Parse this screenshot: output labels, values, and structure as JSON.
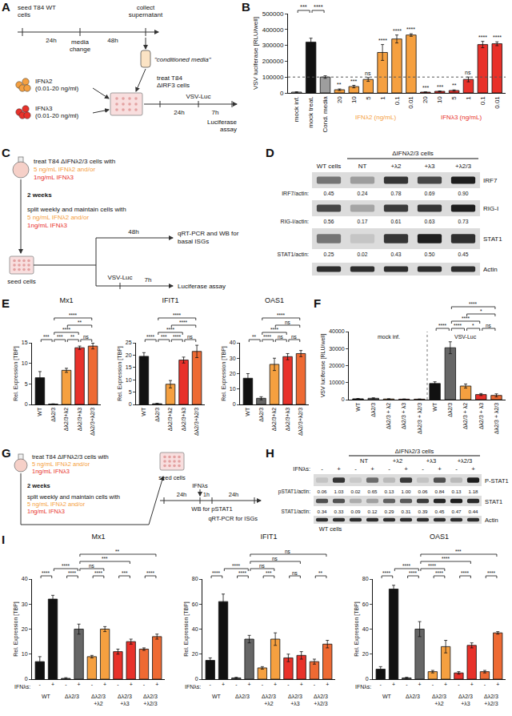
{
  "panel_labels": [
    "A",
    "B",
    "C",
    "D",
    "E",
    "F",
    "G",
    "H",
    "I"
  ],
  "diagrams": {
    "A": {
      "seed": "seed T84 WT cells",
      "collect": "collect supernatant",
      "first_interval": "24h",
      "second_interval": "48h",
      "media_change": "media change",
      "conditioned": "\"conditioned media\"",
      "ifn2": "IFNλ2 (0.01-20 ng/ml)",
      "ifn3": "IFNλ3 (0.01-20 ng/ml)",
      "treat": "treat T84 ΔIRF3 cells",
      "treat_interval": "24h",
      "infection": "VSV-Luc",
      "infection_interval": "7h",
      "readout": "Luciferase assay"
    },
    "C": {
      "treat_lines": [
        "treat T84 ΔIFNλ2/3 cells with",
        "5 ng/mL IFNλ2 and/or",
        "1ng/mL IFNλ3"
      ],
      "duration": "2 weeks",
      "split_lines": [
        "split weekly and maintain cells with",
        "5 ng/mL IFNλ2 and/or",
        "1ng/mL IFNλ3"
      ],
      "seed": "seed cells",
      "upper_interval": "48h",
      "upper_readout": "qRT-PCR and WB for basal ISGs",
      "infection": "VSV-Luc",
      "lower_interval": "7h",
      "lower_readout": "Luciferase assay"
    },
    "G": {
      "treat_lines": [
        "treat T84 ΔIFNλ2/3 cells with",
        "5 ng/mL IFNλ2 and/or",
        "1ng/mL IFNλ3"
      ],
      "duration": "2 weeks",
      "split_lines": [
        "split weekly and maintain cells with",
        "5 ng/mL IFNλ2 and/or",
        "1ng/mL IFNλ3"
      ],
      "seed": "seed cells",
      "first_interval": "24h",
      "stimulus": "IFNλs",
      "second_interval": "1h",
      "third_interval": "24h",
      "wb": "WB for pSTAT1",
      "qpcr": "qRT-PCR for ISGs"
    }
  },
  "blots": {
    "D": {
      "header": "ΔIFNλ2/3 cells",
      "lanes": [
        "WT cells",
        "NT",
        "+λ2",
        "+λ3",
        "+λ2/3"
      ],
      "rows": [
        {
          "protein": "IRF7",
          "ratio_label": "IRF7/actin:",
          "ratios": [
            "0.45",
            "0.24",
            "0.78",
            "0.69",
            "0.90"
          ]
        },
        {
          "protein": "RIG-I",
          "ratio_label": "RIG-I/actin:",
          "ratios": [
            "0.56",
            "0.17",
            "0.61",
            "0.63",
            "0.73"
          ]
        },
        {
          "protein": "STAT1",
          "ratio_label": "STAT1/actin:",
          "ratios": [
            "0.25",
            "0.02",
            "0.43",
            "0.50",
            "0.45"
          ]
        },
        {
          "protein": "Actin"
        }
      ]
    },
    "H": {
      "header": "ΔIFNλ2/3 cells",
      "wt_label": "WT cells",
      "treatment_label": "IFNλs:",
      "treatments": [
        "-",
        "+",
        "-",
        "+",
        "-",
        "+",
        "-",
        "+",
        "-",
        "+"
      ],
      "groups": [
        "NT",
        "+λ2",
        "+λ3",
        "+λ2/3"
      ],
      "rows": [
        {
          "protein": "P-STAT1",
          "ratio_label": "pSTAT1/actin:",
          "ratios": [
            "0.06",
            "1.03",
            "0.02",
            "0.65",
            "0.13",
            "1.00",
            "0.06",
            "0.84",
            "0.13",
            "1.18"
          ]
        },
        {
          "protein": "STAT1",
          "ratio_label": "STAT1/actin:",
          "ratios": [
            "0.34",
            "0.33",
            "0.09",
            "0.12",
            "0.29",
            "0.31",
            "0.39",
            "0.45",
            "0.47",
            "0.44"
          ]
        },
        {
          "protein": "Actin"
        }
      ]
    }
  },
  "chart_data": [
    {
      "panel": "B",
      "type": "bar",
      "y_label": "VSV luciferase [RLU/well]",
      "categories": [
        "mock inf.",
        "mock treat.",
        "Cond. media",
        "20",
        "10",
        "5",
        "1",
        "0.1",
        "0.01",
        "20",
        "10",
        "5",
        "1",
        "0.1",
        "0.01"
      ],
      "values": [
        5000,
        320000,
        100000,
        20000,
        40000,
        85000,
        255000,
        340000,
        365000,
        5000,
        10000,
        15000,
        85000,
        305000,
        310000
      ],
      "errors": [
        2000,
        25000,
        8000,
        5000,
        8000,
        12000,
        50000,
        25000,
        8000,
        1500,
        2000,
        4000,
        15000,
        20000,
        12000
      ],
      "colors": [
        "#ffffff",
        "#111111",
        "#9e9e9e",
        "#F5A040",
        "#F5A040",
        "#F5A040",
        "#F5A040",
        "#F5A040",
        "#F5A040",
        "#E8312A",
        "#E8312A",
        "#E8312A",
        "#E8312A",
        "#E8312A",
        "#E8312A"
      ],
      "ylim": [
        0,
        500000
      ],
      "yticks": [
        0,
        100000,
        200000,
        300000,
        400000,
        500000
      ],
      "grid": false,
      "reference_line": 100000,
      "significance": [
        null,
        null,
        null,
        "**",
        "***",
        "ns",
        "****",
        "****",
        "****",
        "***",
        "***",
        "**",
        "ns",
        "****",
        "****"
      ],
      "brackets": [
        {
          "from": 0,
          "to": 1,
          "label": "***"
        },
        {
          "from": 1,
          "to": 2,
          "label": "****"
        }
      ],
      "groups": [
        {
          "label": "IFNλ2 (ng/mL)",
          "from": 3,
          "to": 8,
          "color": "#F5A040"
        },
        {
          "label": "IFNλ3 (ng/mL)",
          "from": 9,
          "to": 14,
          "color": "#E8312A"
        }
      ]
    },
    {
      "panel": "E",
      "type": "bar",
      "title": "Mx1",
      "y_label": "Rel. Expression [TBP]",
      "categories": [
        "WT",
        "Δλ2/3",
        "Δλ2/3+λ2",
        "Δλ2/3+λ3",
        "Δλ2/3+λ2/3"
      ],
      "values": [
        6.5,
        0.1,
        8.3,
        13.8,
        14.2
      ],
      "errors": [
        1.5,
        0.05,
        0.5,
        0.4,
        0.7
      ],
      "colors": [
        "#111111",
        "#666666",
        "#F5A040",
        "#E8312A",
        "#EE6A33"
      ],
      "ylim": [
        0,
        15
      ],
      "yticks": [
        0,
        5,
        10,
        15
      ],
      "grid": false,
      "brackets": [
        {
          "from": 0,
          "to": 1,
          "label": "***"
        },
        {
          "from": 1,
          "to": 2,
          "label": "***"
        },
        {
          "from": 1,
          "to": 3,
          "label": "****"
        },
        {
          "from": 1,
          "to": 4,
          "label": "****"
        },
        {
          "from": 2,
          "to": 3,
          "label": "**"
        },
        {
          "from": 2,
          "to": 4,
          "label": "**"
        },
        {
          "from": 3,
          "to": 4,
          "label": "ns"
        }
      ]
    },
    {
      "panel": "E",
      "type": "bar",
      "title": "IFIT1",
      "y_label": "Rel. Expression [TBP]",
      "categories": [
        "WT",
        "Δλ2/3",
        "Δλ2/3+λ2",
        "Δλ2/3+λ3",
        "Δλ2/3+λ2/3"
      ],
      "values": [
        19.5,
        0.3,
        8.2,
        18,
        21.5
      ],
      "errors": [
        1.5,
        0.2,
        1.5,
        1.2,
        2.5
      ],
      "colors": [
        "#111111",
        "#666666",
        "#F5A040",
        "#E8312A",
        "#EE6A33"
      ],
      "ylim": [
        0,
        25
      ],
      "yticks": [
        0,
        5,
        10,
        15,
        20,
        25
      ],
      "grid": false,
      "brackets": [
        {
          "from": 0,
          "to": 1,
          "label": "****"
        },
        {
          "from": 1,
          "to": 2,
          "label": "***"
        },
        {
          "from": 1,
          "to": 3,
          "label": "****"
        },
        {
          "from": 1,
          "to": 4,
          "label": "****"
        },
        {
          "from": 2,
          "to": 3,
          "label": "****"
        },
        {
          "from": 2,
          "to": 4,
          "label": "****"
        },
        {
          "from": 3,
          "to": 4,
          "label": "ns"
        }
      ]
    },
    {
      "panel": "E",
      "type": "bar",
      "title": "OAS1",
      "y_label": "Rel. Expression [TBP]",
      "categories": [
        "WT",
        "Δλ2/3",
        "Δλ2/3+λ2",
        "Δλ2/3+λ3",
        "Δλ2/3+λ2/3"
      ],
      "values": [
        17,
        4,
        26,
        31,
        33
      ],
      "errors": [
        3,
        1,
        4,
        2,
        2
      ],
      "colors": [
        "#111111",
        "#666666",
        "#F5A040",
        "#E8312A",
        "#EE6A33"
      ],
      "ylim": [
        0,
        40
      ],
      "yticks": [
        0,
        10,
        20,
        30,
        40
      ],
      "grid": false,
      "brackets": [
        {
          "from": 0,
          "to": 1,
          "label": "**"
        },
        {
          "from": 1,
          "to": 2,
          "label": "****"
        },
        {
          "from": 1,
          "to": 3,
          "label": "****"
        },
        {
          "from": 1,
          "to": 4,
          "label": "****"
        },
        {
          "from": 2,
          "to": 3,
          "label": "ns"
        },
        {
          "from": 2,
          "to": 4,
          "label": "ns"
        },
        {
          "from": 3,
          "to": 4,
          "label": "ns"
        }
      ]
    },
    {
      "panel": "F",
      "type": "bar",
      "y_label": "VSV luciferase [RLU/well]",
      "categories": [
        "WT",
        "Δλ2/3",
        "Δλ2/3 + λ2",
        "Δλ2/3 + λ3",
        "Δλ2/3 + λ2/3",
        "WT",
        "Δλ2/3",
        "Δλ2/3 + λ2",
        "Δλ2/3 + λ3",
        "Δλ2/3 + λ2/3"
      ],
      "values": [
        500,
        800,
        400,
        300,
        300,
        9500,
        30500,
        8000,
        3000,
        2500
      ],
      "errors": [
        200,
        300,
        150,
        100,
        100,
        1000,
        3500,
        1200,
        600,
        900
      ],
      "colors": [
        "#111111",
        "#666666",
        "#F5A040",
        "#E8312A",
        "#EE6A33",
        "#111111",
        "#666666",
        "#F5A040",
        "#E8312A",
        "#EE6A33"
      ],
      "ylim": [
        0,
        40000
      ],
      "yticks": [
        0,
        10000,
        20000,
        30000,
        40000
      ],
      "grid": false,
      "groups": [
        {
          "label": "mock inf.",
          "from": 0,
          "to": 4
        },
        {
          "label": "VSV-Luc",
          "from": 5,
          "to": 9
        }
      ],
      "brackets": [
        {
          "from": 5,
          "to": 6,
          "label": "****"
        },
        {
          "from": 6,
          "to": 7,
          "label": "****"
        },
        {
          "from": 6,
          "to": 8,
          "label": "****"
        },
        {
          "from": 6,
          "to": 9,
          "label": "****"
        },
        {
          "from": 7,
          "to": 8,
          "label": "*"
        },
        {
          "from": 7,
          "to": 9,
          "label": "*"
        },
        {
          "from": 8,
          "to": 9,
          "label": "ns"
        }
      ]
    },
    {
      "panel": "I",
      "type": "bar",
      "title": "Mx1",
      "y_label": "Rel. Expression [TBP]",
      "x_prefix": "IFNλs:",
      "categories": [
        "-",
        "+",
        "-",
        "+",
        "-",
        "+",
        "-",
        "+",
        "-",
        "+"
      ],
      "values": [
        7,
        32,
        0.3,
        20,
        9,
        20,
        11,
        15,
        12,
        17
      ],
      "errors": [
        2,
        1.5,
        0.3,
        2,
        0.5,
        1,
        1,
        1,
        0.5,
        1
      ],
      "colors": [
        "#111111",
        "#111111",
        "#666666",
        "#666666",
        "#F5A040",
        "#F5A040",
        "#E8312A",
        "#E8312A",
        "#EE6A33",
        "#EE6A33"
      ],
      "ylim": [
        0,
        40
      ],
      "yticks": [
        0,
        10,
        20,
        30,
        40
      ],
      "grid": false,
      "groups": [
        {
          "label": "WT",
          "from": 0,
          "to": 1
        },
        {
          "label": "Δλ2/3",
          "from": 2,
          "to": 3
        },
        {
          "label": "Δλ2/3+λ2",
          "from": 4,
          "to": 5
        },
        {
          "label": "Δλ2/3+λ3",
          "from": 6,
          "to": 7
        },
        {
          "label": "Δλ2/3+λ2/3",
          "from": 8,
          "to": 9
        }
      ],
      "brackets": [
        {
          "from": 0,
          "to": 1,
          "label": "****"
        },
        {
          "from": 1,
          "to": 3,
          "label": "****"
        },
        {
          "from": 2,
          "to": 3,
          "label": "****"
        },
        {
          "from": 3,
          "to": 5,
          "label": "ns"
        },
        {
          "from": 3,
          "to": 7,
          "label": "***"
        },
        {
          "from": 3,
          "to": 9,
          "label": "**"
        },
        {
          "from": 4,
          "to": 5,
          "label": "****"
        },
        {
          "from": 6,
          "to": 7,
          "label": "***"
        },
        {
          "from": 8,
          "to": 9,
          "label": "****"
        }
      ]
    },
    {
      "panel": "I",
      "type": "bar",
      "title": "IFIT1",
      "y_label": "Rel. Expression [TBP]",
      "x_prefix": "IFNλs:",
      "categories": [
        "-",
        "+",
        "-",
        "+",
        "-",
        "+",
        "-",
        "+",
        "-",
        "+"
      ],
      "values": [
        15,
        62,
        1,
        32,
        9,
        32,
        17,
        19,
        14,
        28
      ],
      "errors": [
        2,
        6,
        0.5,
        3,
        1,
        5,
        3,
        3,
        2,
        3
      ],
      "colors": [
        "#111111",
        "#111111",
        "#666666",
        "#666666",
        "#F5A040",
        "#F5A040",
        "#E8312A",
        "#E8312A",
        "#EE6A33",
        "#EE6A33"
      ],
      "ylim": [
        0,
        80
      ],
      "yticks": [
        0,
        20,
        40,
        60,
        80
      ],
      "grid": false,
      "groups": [
        {
          "label": "WT",
          "from": 0,
          "to": 1
        },
        {
          "label": "Δλ2/3",
          "from": 2,
          "to": 3
        },
        {
          "label": "Δλ2/3+λ2",
          "from": 4,
          "to": 5
        },
        {
          "label": "Δλ2/3+λ3",
          "from": 6,
          "to": 7
        },
        {
          "label": "Δλ2/3+λ2/3",
          "from": 8,
          "to": 9
        }
      ],
      "brackets": [
        {
          "from": 0,
          "to": 1,
          "label": "****"
        },
        {
          "from": 1,
          "to": 3,
          "label": "****"
        },
        {
          "from": 2,
          "to": 3,
          "label": "****"
        },
        {
          "from": 3,
          "to": 5,
          "label": "ns"
        },
        {
          "from": 3,
          "to": 7,
          "label": "ns"
        },
        {
          "from": 3,
          "to": 9,
          "label": "ns"
        },
        {
          "from": 4,
          "to": 5,
          "label": "***"
        },
        {
          "from": 6,
          "to": 7,
          "label": "ns"
        },
        {
          "from": 8,
          "to": 9,
          "label": "**"
        }
      ]
    },
    {
      "panel": "I",
      "type": "bar",
      "title": "OAS1",
      "y_label": "Rel. Expression [TBP]",
      "x_prefix": "IFNλs:",
      "categories": [
        "-",
        "+",
        "-",
        "+",
        "-",
        "+",
        "-",
        "+",
        "-",
        "+"
      ],
      "values": [
        8,
        72,
        1,
        40,
        6,
        26,
        5,
        27,
        6,
        37
      ],
      "errors": [
        2,
        3,
        0.5,
        6,
        1,
        5,
        1,
        2,
        1,
        1
      ],
      "colors": [
        "#111111",
        "#111111",
        "#666666",
        "#666666",
        "#F5A040",
        "#F5A040",
        "#E8312A",
        "#E8312A",
        "#EE6A33",
        "#EE6A33"
      ],
      "ylim": [
        0,
        80
      ],
      "yticks": [
        0,
        20,
        40,
        60,
        80
      ],
      "grid": false,
      "groups": [
        {
          "label": "WT",
          "from": 0,
          "to": 1
        },
        {
          "label": "Δλ2/3",
          "from": 2,
          "to": 3
        },
        {
          "label": "Δλ2/3+λ2",
          "from": 4,
          "to": 5
        },
        {
          "label": "Δλ2/3+λ3",
          "from": 6,
          "to": 7
        },
        {
          "label": "Δλ2/3+λ2/3",
          "from": 8,
          "to": 9
        }
      ],
      "brackets": [
        {
          "from": 0,
          "to": 1,
          "label": "****"
        },
        {
          "from": 1,
          "to": 3,
          "label": "****"
        },
        {
          "from": 2,
          "to": 3,
          "label": "****"
        },
        {
          "from": 3,
          "to": 5,
          "label": "****"
        },
        {
          "from": 3,
          "to": 7,
          "label": "****"
        },
        {
          "from": 3,
          "to": 9,
          "label": "***"
        },
        {
          "from": 4,
          "to": 5,
          "label": "****"
        },
        {
          "from": 6,
          "to": 7,
          "label": "****"
        },
        {
          "from": 8,
          "to": 9,
          "label": "****"
        }
      ]
    }
  ]
}
